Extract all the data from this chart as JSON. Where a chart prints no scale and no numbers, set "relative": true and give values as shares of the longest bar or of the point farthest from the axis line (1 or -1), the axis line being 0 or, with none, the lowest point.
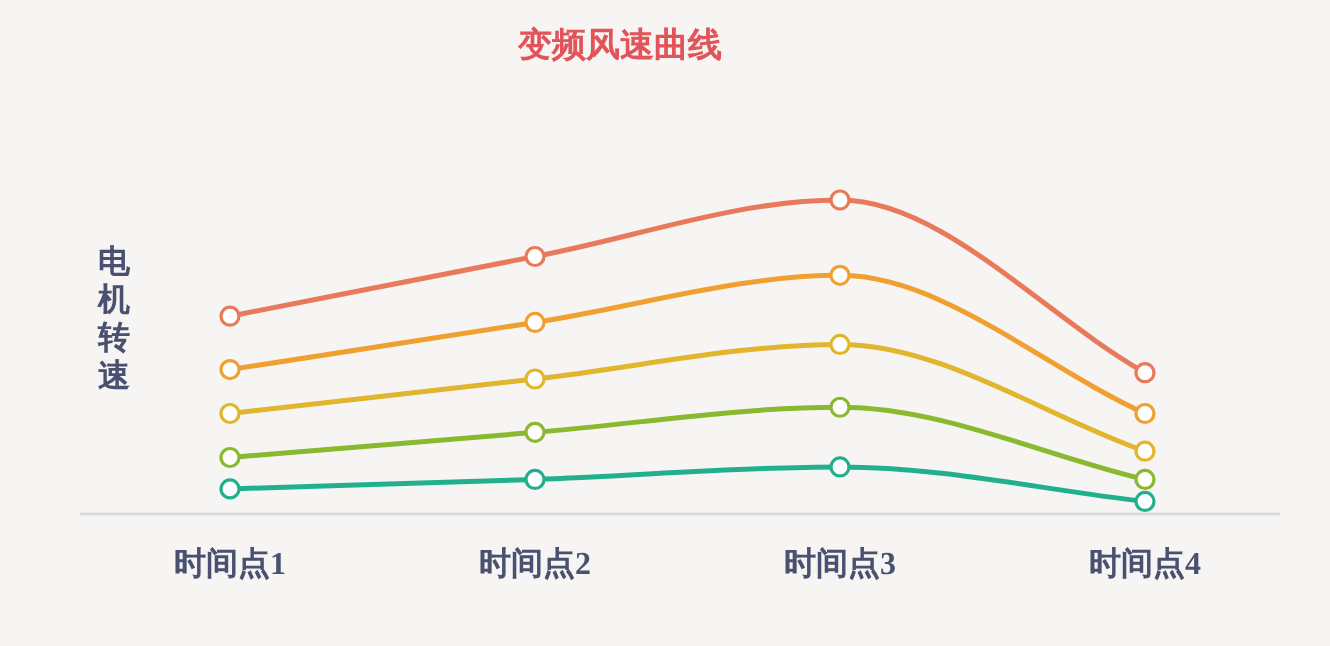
{
  "chart_data": {
    "type": "line",
    "title": "变频风速曲线",
    "ylabel": "电机转速",
    "relative": true,
    "marker": "circle",
    "line_style": "solid",
    "grid": false,
    "categories": [
      "时间点1",
      "时间点2",
      "时间点3",
      "时间点4"
    ],
    "series": [
      {
        "color": "#e8795a",
        "values": [
          0.63,
          0.82,
          1,
          0.45
        ]
      },
      {
        "color": "#f0a030",
        "values": [
          0.46,
          0.61,
          0.76,
          0.32
        ]
      },
      {
        "color": "#e2b52e",
        "values": [
          0.32,
          0.43,
          0.54,
          0.2
        ]
      },
      {
        "color": "#8ab82e",
        "values": [
          0.18,
          0.26,
          0.34,
          0.11
        ]
      },
      {
        "color": "#22b08c",
        "values": [
          0.08,
          0.11,
          0.15,
          0.04
        ]
      }
    ]
  }
}
